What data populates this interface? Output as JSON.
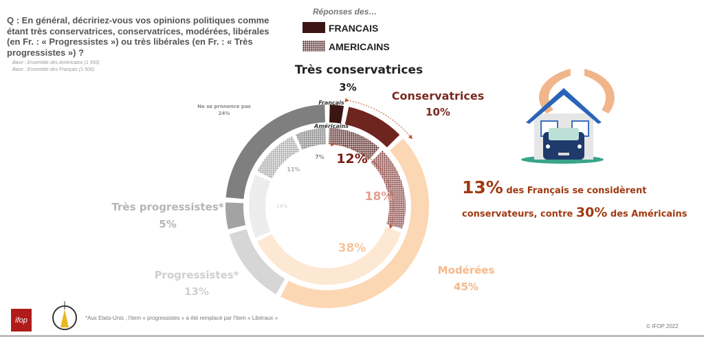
{
  "question": "Q : En général, décririez-vous vos opinions politiques comme étant très conservatrices, conservatrices, modérées, libérales (en Fr. : « Progressistes ») ou très libérales (en Fr. : « Très progressistes ») ?",
  "base_us": "Base : Ensemble des Américains (1 550)",
  "base_fr": "Base : Ensemble des Français (1 506)",
  "legend": {
    "title": "Réponses des…",
    "french": "FRANCAIS",
    "american": "AMERICAINS"
  },
  "ring_labels": {
    "french": "Français",
    "american": "Américains"
  },
  "chart_data": {
    "type": "donut",
    "categories": [
      "Très conservatrices",
      "Conservatrices",
      "Modérées",
      "Progressistes*",
      "Très progressistes*",
      "Ne se prononce pas"
    ],
    "series": [
      {
        "name": "FRANCAIS",
        "ring": "outer",
        "values": [
          3,
          10,
          45,
          13,
          5,
          24
        ],
        "labels": [
          "3%",
          "10%",
          "45%",
          "13%",
          "5%",
          "24%"
        ],
        "colors": [
          "#3b1513",
          "#6e241f",
          "#fcd7b3",
          "#d6d6d6",
          "#a3a3a3",
          "#7f7f7f"
        ]
      },
      {
        "name": "AMERICAINS",
        "ring": "inner",
        "values": [
          12,
          18,
          38,
          14,
          11,
          7
        ],
        "labels": [
          "12%",
          "18%",
          "38%",
          "14%",
          "11%",
          "7%"
        ],
        "colors": [
          "#5a2a28",
          "#8a4a46",
          "#fde8d4",
          "#ececec",
          "#bdbdbd",
          "#9a9a9a"
        ]
      }
    ]
  },
  "highlight": {
    "pct_fr": "13%",
    "text1": " des Français se considèrent",
    "text2a": "conservateurs, contre ",
    "pct_us": "30%",
    "text2b": " des Américains"
  },
  "footnote": "*Aux Etats-Unis , l'item « progressistes » a été remplacé par l'item « Libéraux »",
  "copyright": "© IFOP 2022",
  "logo_text": "ifop"
}
